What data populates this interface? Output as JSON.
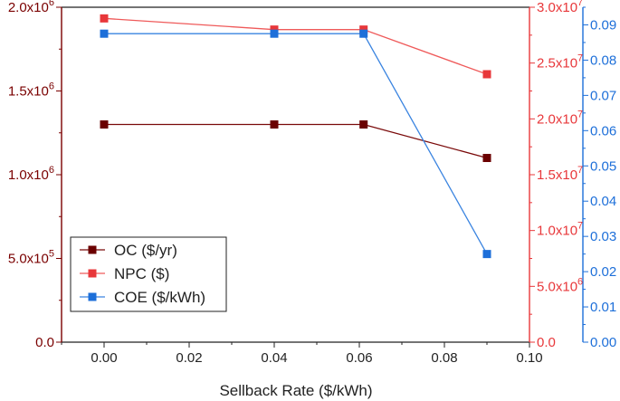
{
  "chart_data": {
    "type": "line",
    "title": "",
    "xlabel": "Sellback Rate ($/kWh)",
    "xlim": [
      -0.01,
      0.1
    ],
    "x": [
      0.0,
      0.04,
      0.061,
      0.09
    ],
    "x_ticks": [
      "0.00",
      "0.02",
      "0.04",
      "0.06",
      "0.08",
      "0.10"
    ],
    "axes": {
      "left": {
        "color": "#7a0000",
        "ylim": [
          0,
          2000000
        ],
        "ticks": [
          [
            "0.0",
            ""
          ],
          [
            "5.0x10",
            "5"
          ],
          [
            "1.0x10",
            "6"
          ],
          [
            "1.5x10",
            "6"
          ],
          [
            "2.0x10",
            "6"
          ]
        ]
      },
      "right1": {
        "color": "#e8373a",
        "ylim": [
          0,
          30000000
        ],
        "ticks": [
          [
            "0.0",
            ""
          ],
          [
            "5.0x10",
            "6"
          ],
          [
            "1.0x10",
            "7"
          ],
          [
            "1.5x10",
            "7"
          ],
          [
            "2.0x10",
            "7"
          ],
          [
            "2.5x10",
            "7"
          ],
          [
            "3.0x10",
            "7"
          ]
        ]
      },
      "right2": {
        "color": "#1d6fd9",
        "ylim": [
          0,
          0.095
        ],
        "ticks": [
          "0.00",
          "0.01",
          "0.02",
          "0.03",
          "0.04",
          "0.05",
          "0.06",
          "0.07",
          "0.08",
          "0.09"
        ]
      }
    },
    "series": [
      {
        "name": "OC ($/yr)",
        "axis": "left",
        "marker_color": "#6b0000",
        "line_color": "#7a0a0a",
        "values": [
          1300000,
          1300000,
          1300000,
          1100000
        ]
      },
      {
        "name": "NPC ($)",
        "axis": "right1",
        "marker_color": "#e8373a",
        "line_color": "#ef5a5a",
        "values": [
          29000000,
          28000000,
          28000000,
          24000000
        ]
      },
      {
        "name": "COE ($/kWh)",
        "axis": "right2",
        "marker_color": "#1d6fd9",
        "line_color": "#3a84e0",
        "values": [
          0.0875,
          0.0875,
          0.0875,
          0.025
        ]
      }
    ],
    "legend_position": "bottom-left",
    "grid": false
  }
}
